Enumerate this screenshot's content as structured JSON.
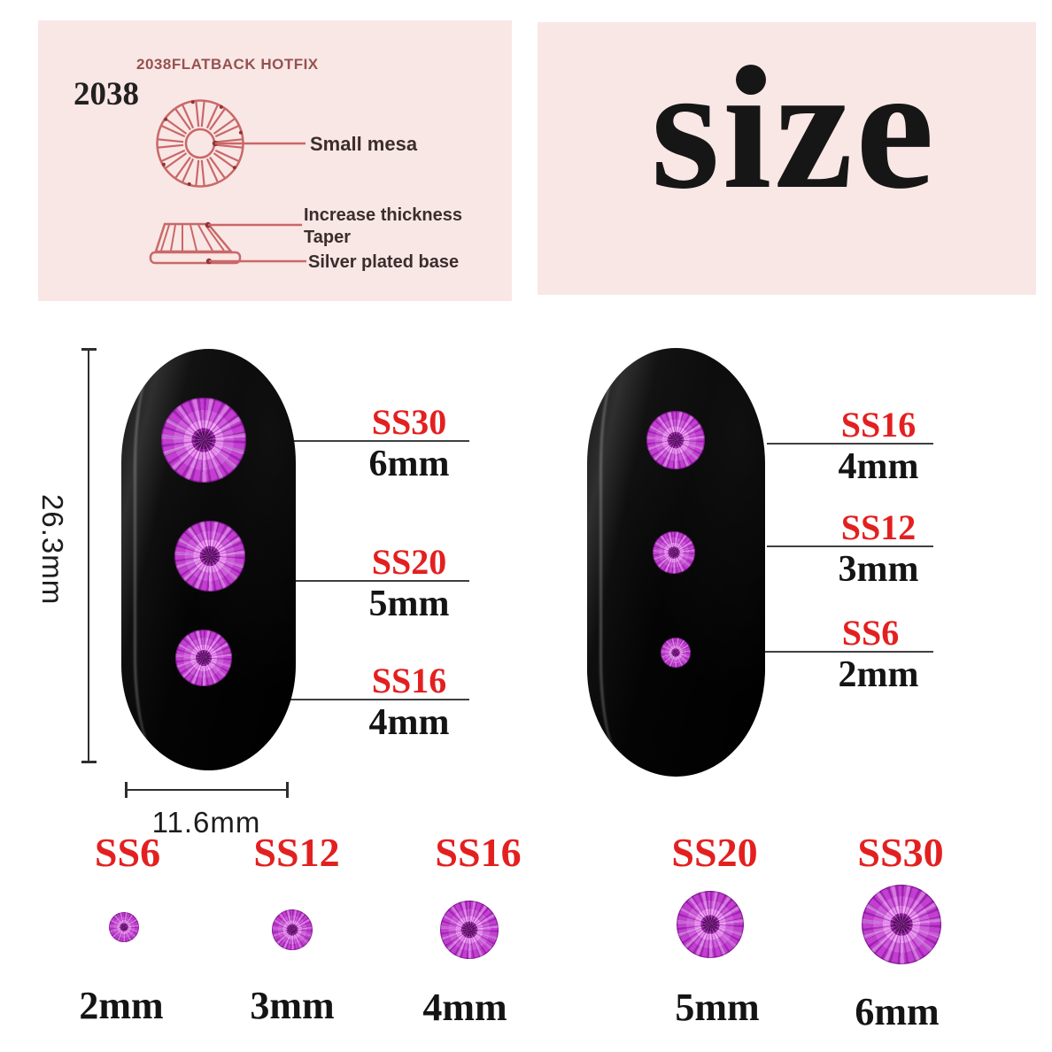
{
  "spec_panel": {
    "title": "2038FLATBACK HOTFIX",
    "model_number": "2038",
    "labels": {
      "small_mesa": "Small mesa",
      "increase_thickness": "Increase thickness",
      "taper": "Taper",
      "silver_plated_base": "Silver plated base"
    }
  },
  "size_panel": {
    "title": "size"
  },
  "left_nail": {
    "height_label": "26.3mm",
    "width_label": "11.6mm",
    "callouts": [
      {
        "ss": "SS30",
        "mm": "6mm"
      },
      {
        "ss": "SS20",
        "mm": "5mm"
      },
      {
        "ss": "SS16",
        "mm": "4mm"
      }
    ]
  },
  "right_nail": {
    "callouts": [
      {
        "ss": "SS16",
        "mm": "4mm"
      },
      {
        "ss": "SS12",
        "mm": "3mm"
      },
      {
        "ss": "SS6",
        "mm": "2mm"
      }
    ]
  },
  "size_row": [
    {
      "ss": "SS6",
      "mm": "2mm"
    },
    {
      "ss": "SS12",
      "mm": "3mm"
    },
    {
      "ss": "SS16",
      "mm": "4mm"
    },
    {
      "ss": "SS20",
      "mm": "5mm"
    },
    {
      "ss": "SS30",
      "mm": "6mm"
    }
  ],
  "colors": {
    "panel_pink": "#f9e7e6",
    "accent_red": "#e32020",
    "diagram_line_red": "#c96868",
    "gem_magenta": "#c238d2",
    "text_black": "#161616"
  }
}
